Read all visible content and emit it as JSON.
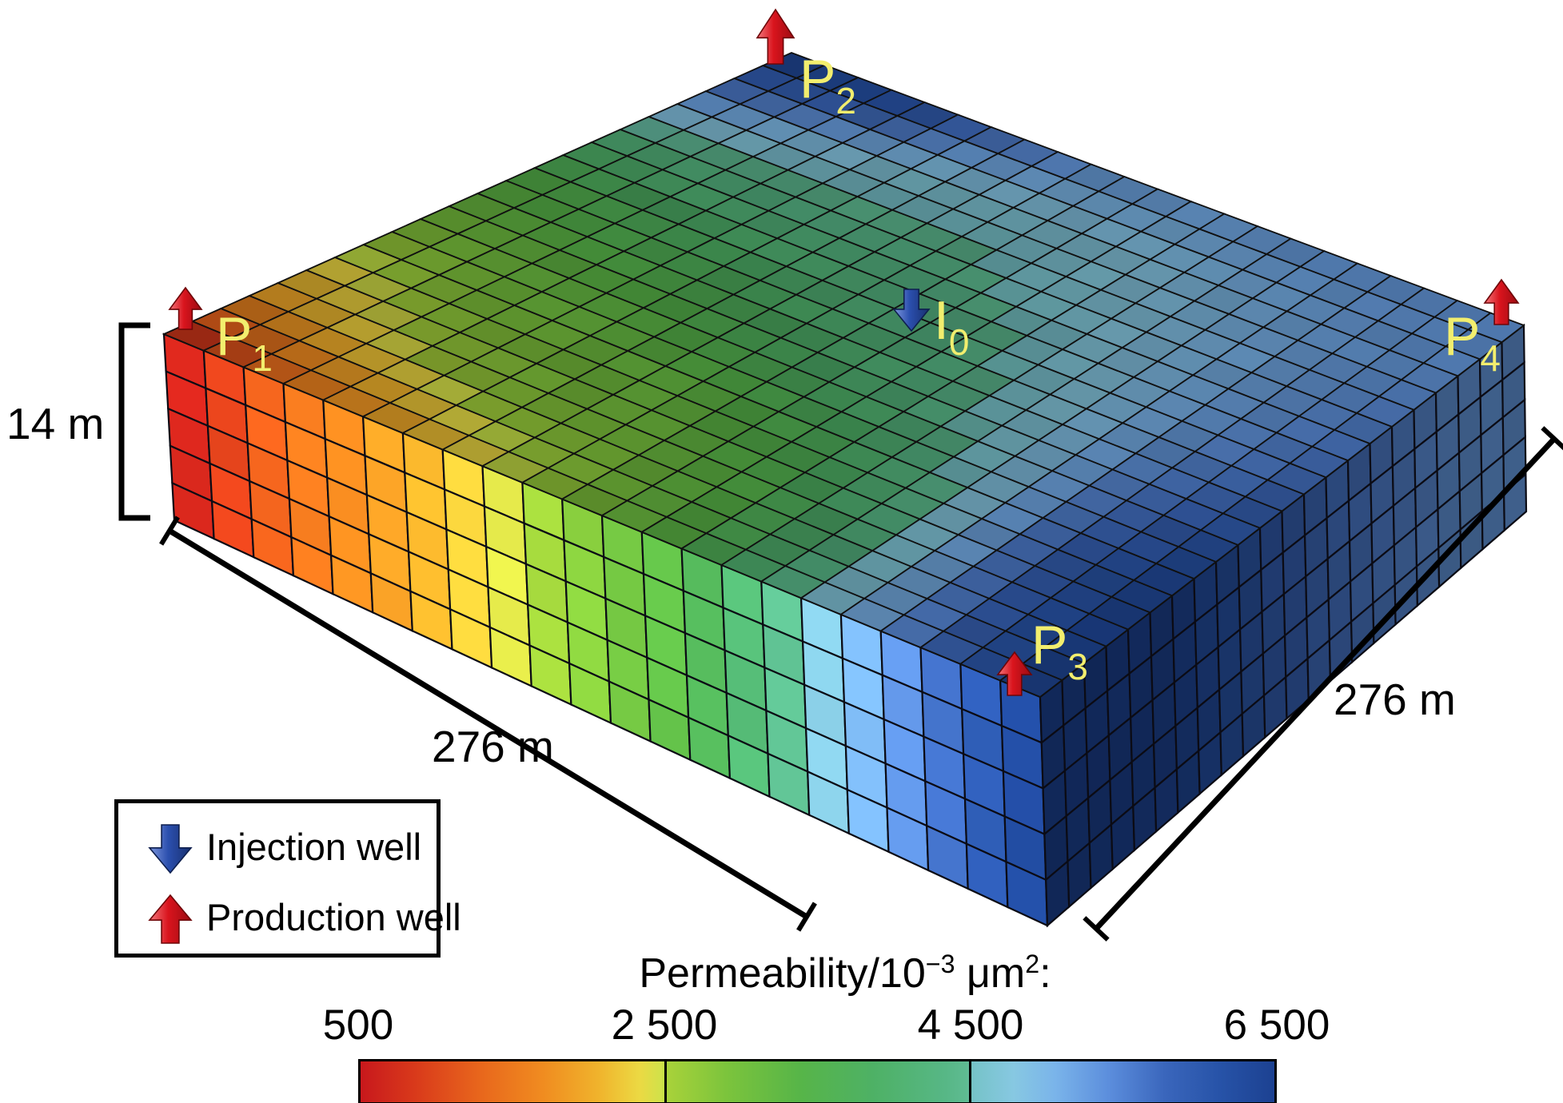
{
  "figure": {
    "background": "#ffffff",
    "well_label_color": "#f2ee6e",
    "arrow_colors": {
      "production": "#d6141d",
      "injection": "#2b4fae"
    }
  },
  "dimensions": {
    "height_label": "14 m",
    "front_left_label": "276 m",
    "front_right_label": "276 m"
  },
  "legend": {
    "items": [
      {
        "icon": "arrow-down-icon",
        "color": "#2b4fae",
        "label": "Injection well"
      },
      {
        "icon": "arrow-up-icon",
        "color": "#d6141d",
        "label": "Production well"
      }
    ]
  },
  "colorbar": {
    "title_parts": {
      "base1": "Permeability/10",
      "exp1": "−3",
      "base2": " μm",
      "exp2": "2",
      "base3": ":"
    },
    "ticks": [
      "500",
      "2 500",
      "4 500",
      "6 500"
    ]
  },
  "chart_data": {
    "type": "heatmap",
    "projection": "3d-block",
    "grid": {
      "nx": 22,
      "ny": 22,
      "nz": 5
    },
    "block_dimensions": {
      "x": "276 m",
      "y": "276 m",
      "z": "14 m"
    },
    "value_label": "Permeability/10−3 μm2",
    "value_range": [
      500,
      6500
    ],
    "colorbar_tick_values": [
      500,
      2500,
      4500,
      6500
    ],
    "legend_position": "bottom",
    "permeability_field": {
      "description": "8x8 bilinear control grid; u runs along P1→P3 front-left edge, v runs along P1→P2 top-left edge; units 10^-3 um^2",
      "values": [
        [
          500,
          1800,
          2400,
          2900,
          3400,
          4200,
          5400,
          6500
        ],
        [
          1400,
          2300,
          2800,
          3200,
          3700,
          4300,
          5000,
          6400
        ],
        [
          2000,
          2700,
          3000,
          3400,
          3900,
          4400,
          4700,
          5700
        ],
        [
          2600,
          2900,
          3200,
          3800,
          4200,
          4400,
          4700,
          5300
        ],
        [
          3300,
          3400,
          3700,
          4200,
          4400,
          4600,
          4800,
          5200
        ],
        [
          4500,
          4300,
          4500,
          4700,
          4800,
          4900,
          5000,
          5300
        ],
        [
          5500,
          5700,
          5700,
          5500,
          5300,
          5200,
          5200,
          5300
        ],
        [
          6500,
          6500,
          6400,
          6000,
          5700,
          5500,
          5300,
          5300
        ]
      ]
    },
    "wells": [
      {
        "id": "P1",
        "label": "P",
        "subscript": "1",
        "type": "production",
        "surface_uv": [
          0,
          0
        ]
      },
      {
        "id": "P2",
        "label": "P",
        "subscript": "2",
        "type": "production",
        "surface_uv": [
          0,
          1
        ]
      },
      {
        "id": "P3",
        "label": "P",
        "subscript": "3",
        "type": "production",
        "surface_uv": [
          1,
          0
        ]
      },
      {
        "id": "P4",
        "label": "P",
        "subscript": "4",
        "type": "production",
        "surface_uv": [
          1,
          1
        ]
      },
      {
        "id": "I0",
        "label": "I",
        "subscript": "0",
        "type": "injection",
        "surface_uv": [
          0.5,
          0.5
        ]
      }
    ],
    "colormap": [
      {
        "t": 0.0,
        "c": "#c8181c"
      },
      {
        "t": 0.06,
        "c": "#d93a1b"
      },
      {
        "t": 0.13,
        "c": "#e8661c"
      },
      {
        "t": 0.2,
        "c": "#f08c20"
      },
      {
        "t": 0.26,
        "c": "#f0b32c"
      },
      {
        "t": 0.305,
        "c": "#ecd943"
      },
      {
        "t": 0.33,
        "c": "#cfe24a"
      },
      {
        "t": 0.336,
        "c": "#a8d23a"
      },
      {
        "t": 0.4,
        "c": "#7cc43c"
      },
      {
        "t": 0.48,
        "c": "#57b548"
      },
      {
        "t": 0.56,
        "c": "#4eb165"
      },
      {
        "t": 0.64,
        "c": "#57b786"
      },
      {
        "t": 0.664,
        "c": "#5fbb92"
      },
      {
        "t": 0.67,
        "c": "#76c3c8"
      },
      {
        "t": 0.715,
        "c": "#87c8e2"
      },
      {
        "t": 0.76,
        "c": "#7ab4ea"
      },
      {
        "t": 0.82,
        "c": "#5b8ddc"
      },
      {
        "t": 0.88,
        "c": "#3a66bc"
      },
      {
        "t": 0.94,
        "c": "#2753a8"
      },
      {
        "t": 1.0,
        "c": "#1c4191"
      }
    ]
  }
}
